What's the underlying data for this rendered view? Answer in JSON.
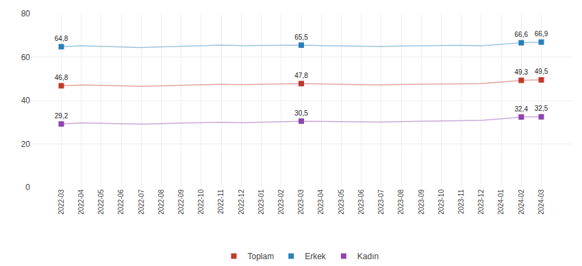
{
  "chart_data": {
    "type": "line",
    "categories": [
      "2022-03",
      "2022-04",
      "2022-05",
      "2022-06",
      "2022-07",
      "2022-08",
      "2022-09",
      "2022-10",
      "2022-11",
      "2022-12",
      "2023-01",
      "2023-02",
      "2023-03",
      "2023-04",
      "2023-05",
      "2023-06",
      "2023-07",
      "2023-08",
      "2023-09",
      "2023-10",
      "2023-11",
      "2023-12",
      "2024-01",
      "2024-02",
      "2024-03"
    ],
    "series": [
      {
        "name": "Toplam",
        "color": "#c0392b",
        "values": [
          46.8,
          47.2,
          47.0,
          46.8,
          46.5,
          46.8,
          47.0,
          47.2,
          47.5,
          47.3,
          47.5,
          47.6,
          47.8,
          47.6,
          47.4,
          47.3,
          47.2,
          47.4,
          47.5,
          47.6,
          47.7,
          47.8,
          48.5,
          49.3,
          49.5
        ],
        "value_labels": [
          "46,8",
          null,
          null,
          null,
          null,
          null,
          null,
          null,
          null,
          null,
          null,
          null,
          "47,8",
          null,
          null,
          null,
          null,
          null,
          null,
          null,
          null,
          null,
          null,
          "49,3",
          "49,5"
        ]
      },
      {
        "name": "Erkek",
        "color": "#2980b9",
        "values": [
          64.8,
          65.2,
          65.0,
          64.7,
          64.4,
          64.7,
          65.0,
          65.2,
          65.5,
          65.3,
          65.4,
          65.4,
          65.5,
          65.3,
          65.1,
          65.0,
          64.9,
          65.1,
          65.2,
          65.3,
          65.4,
          65.2,
          65.8,
          66.6,
          66.9
        ],
        "value_labels": [
          "64,8",
          null,
          null,
          null,
          null,
          null,
          null,
          null,
          null,
          null,
          null,
          null,
          "65,5",
          null,
          null,
          null,
          null,
          null,
          null,
          null,
          null,
          null,
          null,
          "66,6",
          "66,9"
        ]
      },
      {
        "name": "Kadın",
        "color": "#8e44ad",
        "values": [
          29.2,
          29.7,
          29.5,
          29.4,
          29.1,
          29.4,
          29.6,
          29.8,
          30.0,
          29.8,
          30.0,
          30.2,
          30.5,
          30.4,
          30.3,
          30.2,
          30.1,
          30.3,
          30.5,
          30.6,
          30.7,
          30.9,
          31.6,
          32.4,
          32.5
        ],
        "value_labels": [
          "29,2",
          null,
          null,
          null,
          null,
          null,
          null,
          null,
          null,
          null,
          null,
          null,
          "30,5",
          null,
          null,
          null,
          null,
          null,
          null,
          null,
          null,
          null,
          null,
          "32,4",
          "32,5"
        ]
      }
    ],
    "marker": "square",
    "data_labels": true,
    "ylim": [
      0,
      80
    ],
    "yticks": [
      0,
      20,
      40,
      60,
      80
    ],
    "grid": true,
    "legend": "bottom"
  }
}
